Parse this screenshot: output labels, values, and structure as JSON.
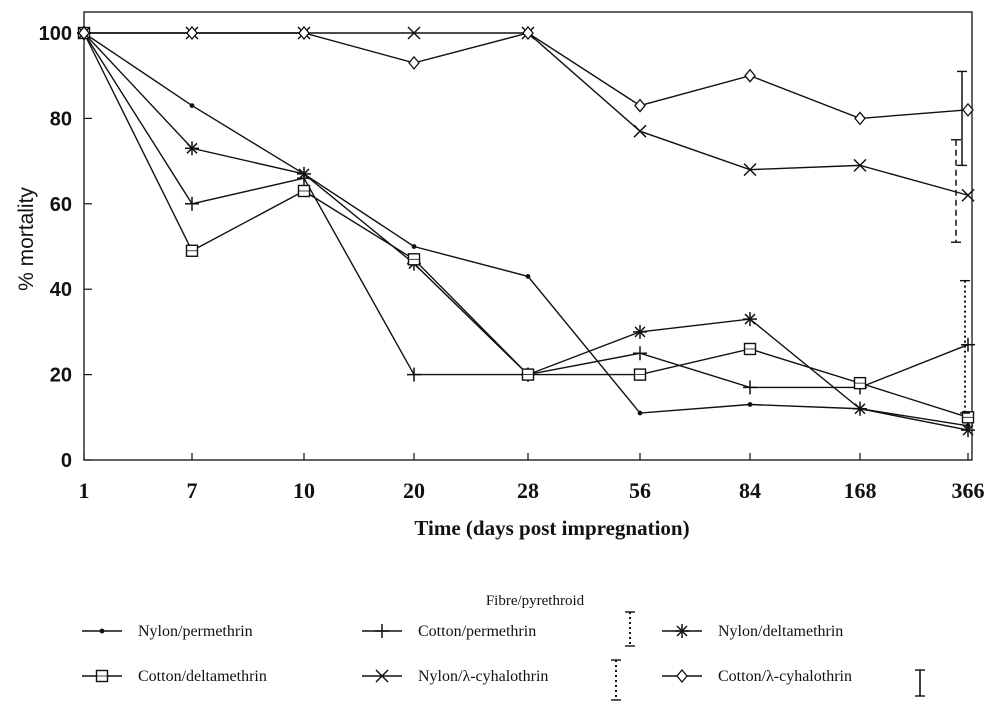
{
  "chart_data": {
    "type": "line",
    "title": "",
    "xlabel": "Time (days post impregnation)",
    "ylabel": "% mortality",
    "categories": [
      "1",
      "7",
      "10",
      "20",
      "28",
      "56",
      "84",
      "168",
      "366"
    ],
    "y_ticks": [
      "0",
      "20",
      "40",
      "60",
      "80",
      "100"
    ],
    "ylim": [
      0,
      100
    ],
    "grid": false,
    "legend_title": "Fibre/pyrethroid",
    "legend_position": "bottom",
    "series": [
      {
        "name": "Nylon/permethrin",
        "marker": "dot",
        "values": [
          100,
          83,
          67,
          50,
          43,
          11,
          13,
          12,
          8
        ]
      },
      {
        "name": "Cotton/permethrin",
        "marker": "plus",
        "values": [
          100,
          60,
          66,
          20,
          20,
          25,
          17,
          17,
          27
        ]
      },
      {
        "name": "Nylon/deltamethrin",
        "marker": "asterisk",
        "values": [
          100,
          73,
          67,
          46,
          20,
          30,
          33,
          12,
          7
        ]
      },
      {
        "name": "Cotton/deltamethrin",
        "marker": "square",
        "values": [
          100,
          49,
          63,
          47,
          20,
          20,
          26,
          18,
          10
        ]
      },
      {
        "name": "Nylon/λ-cyhalothrin",
        "marker": "cross",
        "values": [
          100,
          100,
          100,
          100,
          100,
          77,
          68,
          69,
          62
        ]
      },
      {
        "name": "Cotton/λ-cyhalothrin",
        "marker": "diamond",
        "values": [
          100,
          100,
          100,
          93,
          100,
          83,
          90,
          80,
          82
        ]
      }
    ],
    "error_bars": [
      {
        "x": "366",
        "style": "solid",
        "low": 69,
        "high": 91
      },
      {
        "x": "366",
        "style": "dashed",
        "low": 51,
        "high": 75
      },
      {
        "x": "366",
        "style": "dotted",
        "low": 11,
        "high": 42
      }
    ]
  }
}
